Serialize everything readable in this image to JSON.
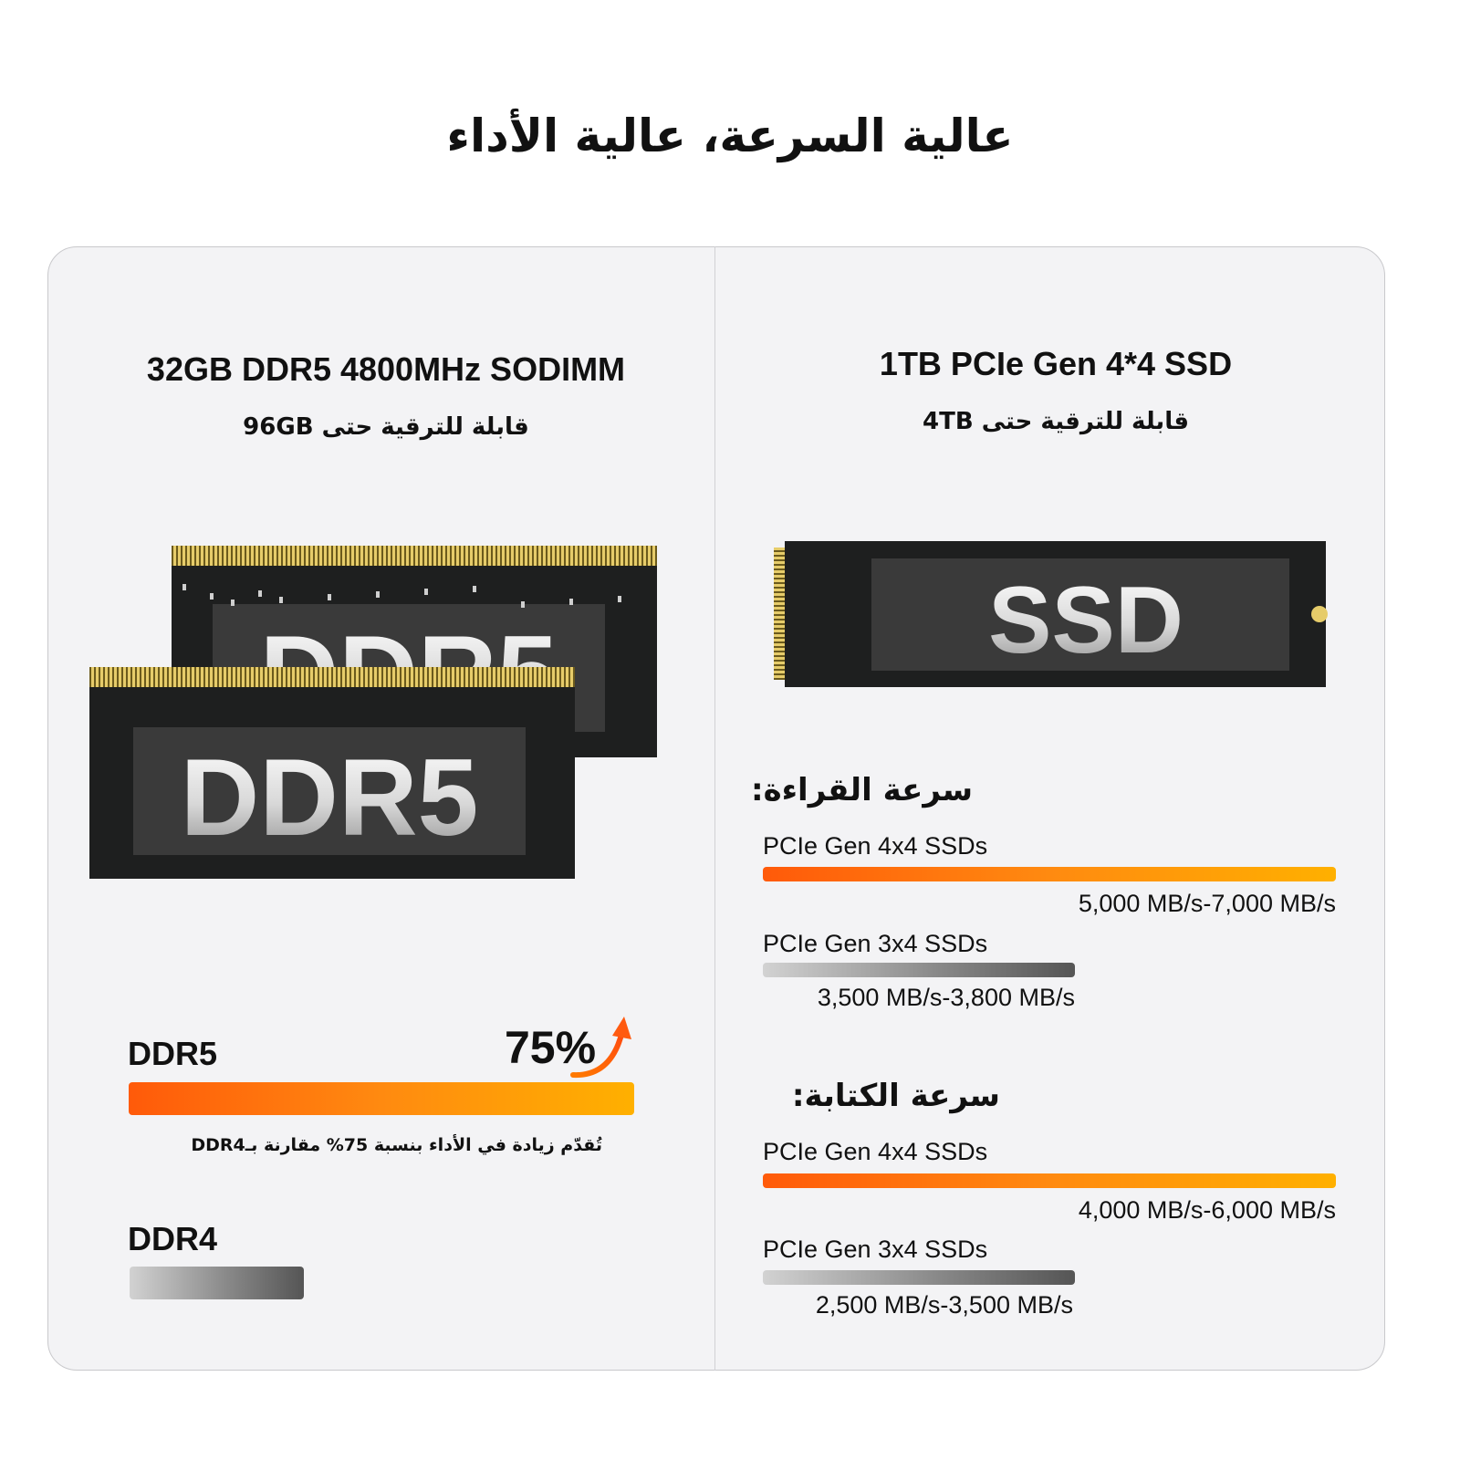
{
  "header": {
    "title": "عالية السرعة، عالية الأداء"
  },
  "memory": {
    "title": "32GB DDR5 4800MHz SODIMM",
    "subtitle": "قابلة للترقية حتى 96GB",
    "module_label": "DDR5",
    "comparison": {
      "ddr5_label": "DDR5",
      "gain": "75%",
      "caption": "تُقدّم زيادة في الأداء بنسبة 75% مقارنة بـDDR4",
      "ddr4_label": "DDR4"
    }
  },
  "storage": {
    "title": "1TB PCIe Gen 4*4 SSD",
    "subtitle": "قابلة للترقية حتى 4TB",
    "module_label": "SSD",
    "read": {
      "heading": "سرعة القراءة:",
      "rows": [
        {
          "label": "PCIe Gen 4x4 SSDs",
          "speed": "5,000 MB/s-7,000 MB/s"
        },
        {
          "label": "PCIe Gen 3x4 SSDs",
          "speed": "3,500 MB/s-3,800 MB/s"
        }
      ]
    },
    "write": {
      "heading": "سرعة الكتابة:",
      "rows": [
        {
          "label": "PCIe Gen 4x4 SSDs",
          "speed": "4,000 MB/s-6,000 MB/s"
        },
        {
          "label": "PCIe Gen 3x4 SSDs",
          "speed": "2,500 MB/s-3,500 MB/s"
        }
      ]
    }
  }
}
